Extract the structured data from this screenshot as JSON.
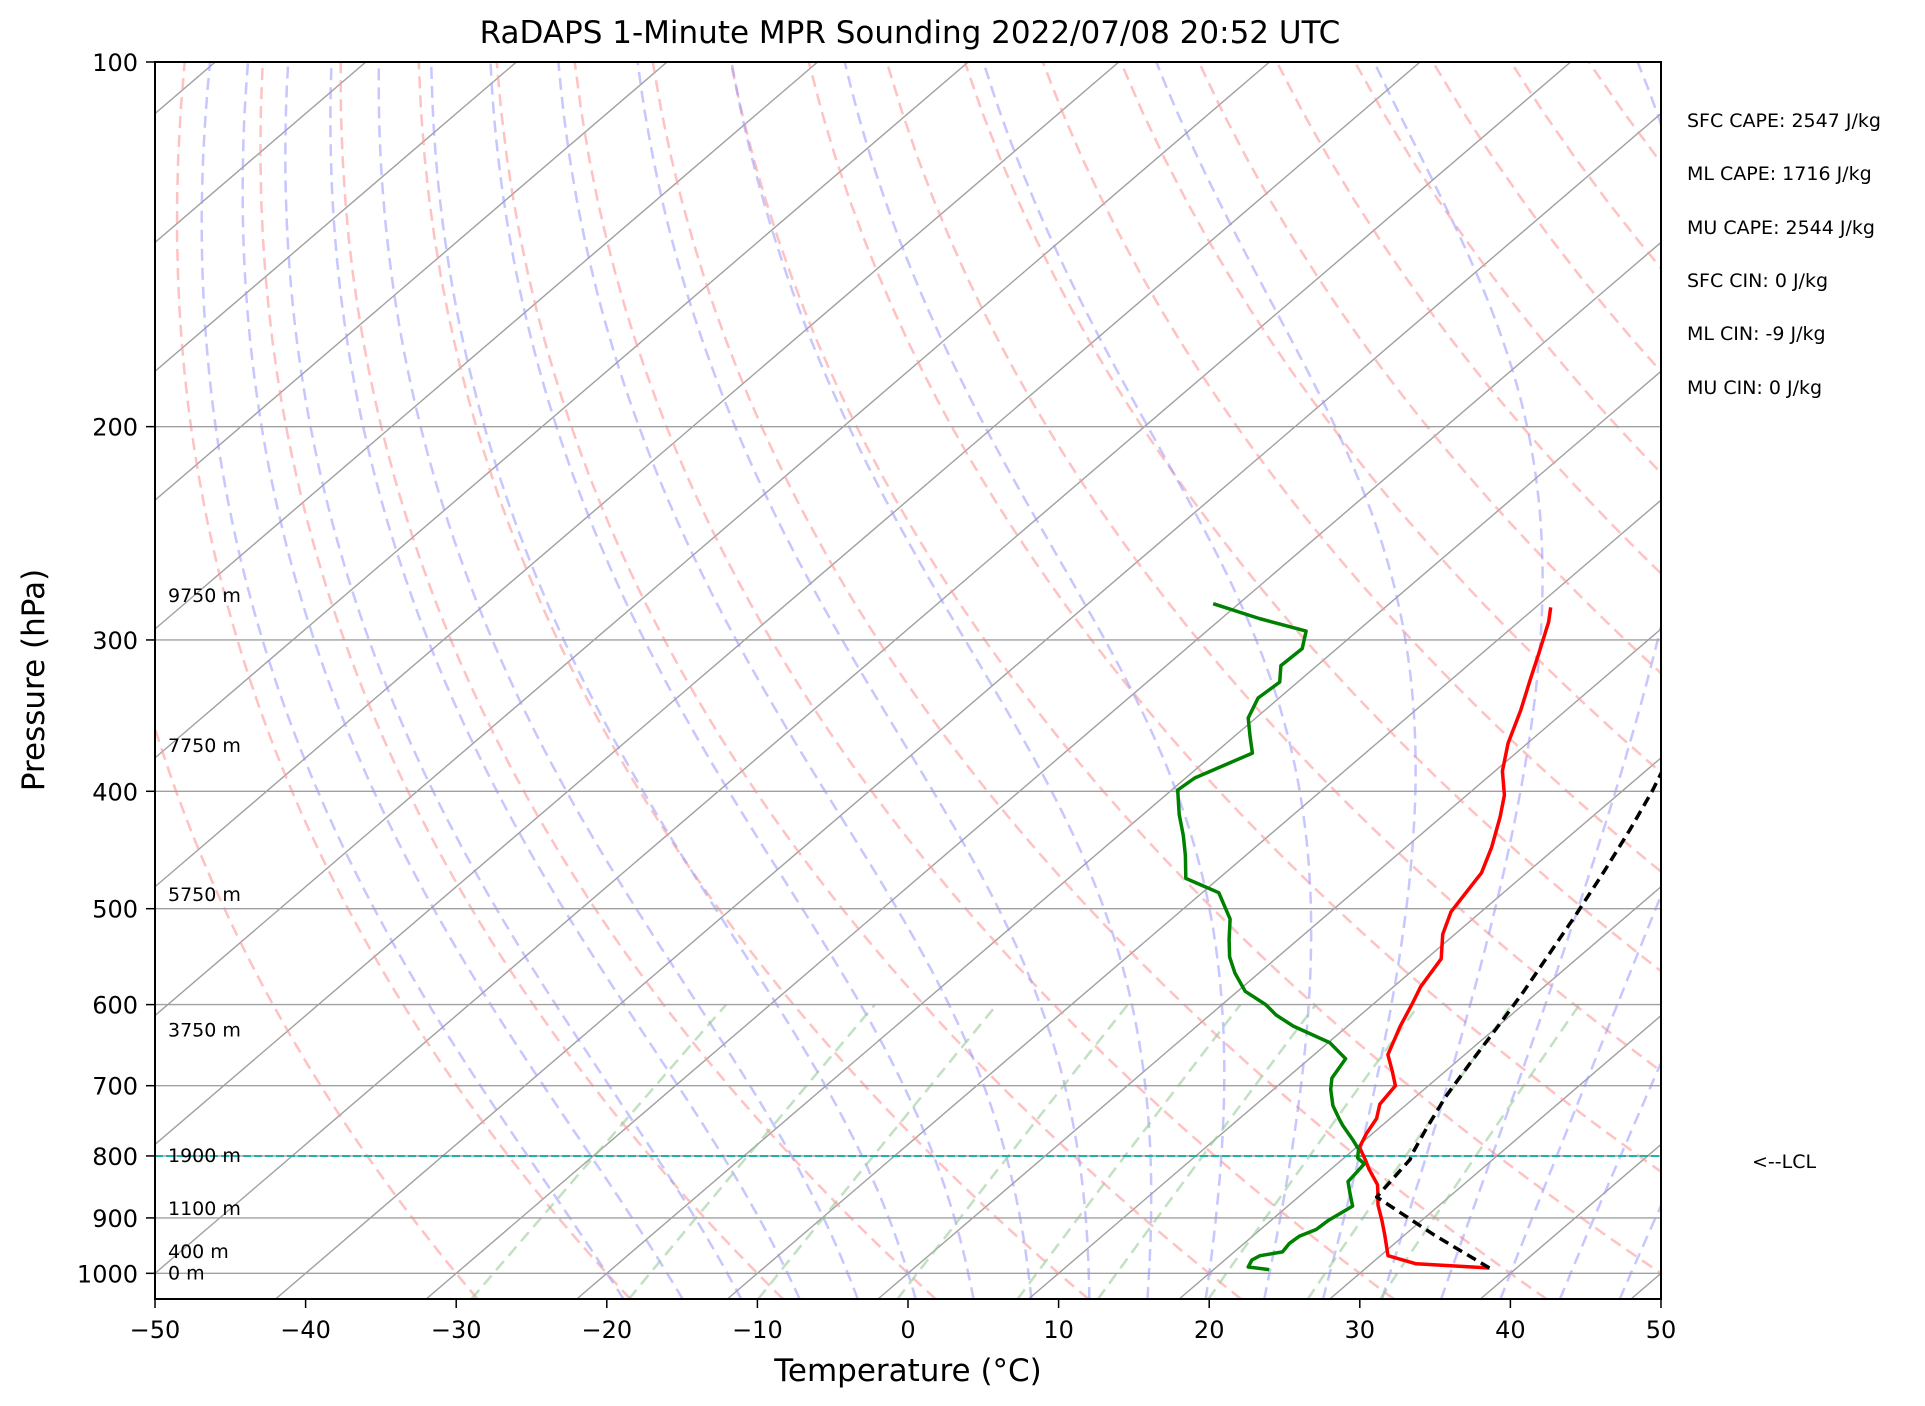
{
  "chart_data": {
    "type": "skew-t",
    "title": "RaDAPS 1-Minute MPR Sounding 2022/07/08 20:52 UTC",
    "xlabel": "Temperature (°C)",
    "ylabel": "Pressure (hPa)",
    "xlim": [
      -50,
      50
    ],
    "ylim": [
      1050,
      100
    ],
    "y_scale": "log",
    "x_ticks": [
      -50,
      -40,
      -30,
      -20,
      -10,
      0,
      10,
      20,
      30,
      40,
      50
    ],
    "x_tick_labels": [
      "−50",
      "−40",
      "−30",
      "−20",
      "−10",
      "0",
      "10",
      "20",
      "30",
      "40",
      "50"
    ],
    "y_ticks": [
      100,
      200,
      300,
      400,
      500,
      600,
      700,
      800,
      900,
      1000
    ],
    "y_tick_labels": [
      "100",
      "200",
      "300",
      "400",
      "500",
      "600",
      "700",
      "800",
      "900",
      "1000"
    ],
    "grid": true,
    "colors": {
      "temperature": "#ff0000",
      "dewpoint": "#008000",
      "parcel": "#000000",
      "lcl_line": "#20b2aa",
      "isotherms": "#a0a0a0",
      "dry_adiabats": "#ff9999",
      "moist_adiabats": "#9999ff",
      "mixing_ratio": "#99cc99"
    },
    "height_labels": [
      {
        "text": "0 m",
        "p": 1000
      },
      {
        "text": "400 m",
        "p": 960
      },
      {
        "text": "1100 m",
        "p": 885
      },
      {
        "text": "1900 m",
        "p": 800
      },
      {
        "text": "3750 m",
        "p": 630
      },
      {
        "text": "5750 m",
        "p": 487
      },
      {
        "text": "7750 m",
        "p": 367
      },
      {
        "text": "9750 m",
        "p": 276
      }
    ],
    "lcl": {
      "p": 800,
      "label": "<--LCL"
    },
    "series": [
      {
        "key": "temperature",
        "points": [
          [
            38.2,
            990
          ],
          [
            33,
            982
          ],
          [
            30.5,
            967
          ],
          [
            28.7,
            930
          ],
          [
            27.4,
            905
          ],
          [
            25.9,
            878
          ],
          [
            24.8,
            855
          ],
          [
            24.3,
            845
          ],
          [
            22.5,
            820
          ],
          [
            21.5,
            805
          ],
          [
            20.2,
            787
          ],
          [
            19.6,
            767
          ],
          [
            19.1,
            745
          ],
          [
            18.2,
            725
          ],
          [
            17.8,
            700
          ],
          [
            16.4,
            680
          ],
          [
            14.9,
            660
          ],
          [
            13.5,
            625
          ],
          [
            12.6,
            600
          ],
          [
            11.8,
            580
          ],
          [
            11,
            550
          ],
          [
            9.2,
            525
          ],
          [
            8,
            503
          ],
          [
            7,
            467
          ],
          [
            5.7,
            445
          ],
          [
            3.9,
            420
          ],
          [
            2.5,
            403
          ],
          [
            0.5,
            385
          ],
          [
            -1.3,
            365
          ],
          [
            -3,
            343
          ],
          [
            -4.8,
            323
          ],
          [
            -6.2,
            308
          ],
          [
            -8,
            290
          ],
          [
            -9,
            282
          ]
        ]
      },
      {
        "key": "dewpoint",
        "points": [
          [
            23.7,
            993
          ],
          [
            22.1,
            988
          ],
          [
            21.8,
            975
          ],
          [
            22,
            967
          ],
          [
            23.2,
            960
          ],
          [
            23,
            945
          ],
          [
            23.1,
            932
          ],
          [
            23.7,
            920
          ],
          [
            23.8,
            905
          ],
          [
            24.3,
            880
          ],
          [
            23.2,
            860
          ],
          [
            22.1,
            840
          ],
          [
            22,
            830
          ],
          [
            21.8,
            812
          ],
          [
            20.9,
            803
          ],
          [
            20.3,
            790
          ],
          [
            19.1,
            775
          ],
          [
            17.4,
            755
          ],
          [
            16.6,
            745
          ],
          [
            15.2,
            727
          ],
          [
            13.8,
            705
          ],
          [
            13,
            690
          ],
          [
            12.4,
            665
          ],
          [
            10.1,
            645
          ],
          [
            6.4,
            625
          ],
          [
            4.4,
            612
          ],
          [
            2.9,
            600
          ],
          [
            0.5,
            585
          ],
          [
            -1.6,
            565
          ],
          [
            -3.2,
            548
          ],
          [
            -4.6,
            530
          ],
          [
            -6.1,
            510
          ],
          [
            -8.9,
            485
          ],
          [
            -12.2,
            472
          ],
          [
            -14,
            452
          ],
          [
            -15.7,
            435
          ],
          [
            -17.6,
            418
          ],
          [
            -19.6,
            399
          ],
          [
            -19.4,
            390
          ],
          [
            -17.5,
            372
          ],
          [
            -19,
            360
          ],
          [
            -20.5,
            348
          ],
          [
            -21.4,
            335
          ],
          [
            -21.2,
            325
          ],
          [
            -22.4,
            315
          ],
          [
            -22.3,
            305
          ],
          [
            -23.4,
            295
          ],
          [
            -27.5,
            288
          ],
          [
            -31.7,
            280
          ]
        ]
      },
      {
        "key": "parcel",
        "dashed": true,
        "points": [
          [
            38.2,
            990
          ],
          [
            32,
            930
          ],
          [
            25.2,
            865
          ],
          [
            24.5,
            805
          ],
          [
            24.3,
            800
          ],
          [
            23.2,
            760
          ],
          [
            22,
            715
          ],
          [
            21,
            670
          ],
          [
            20,
            625
          ],
          [
            19,
            585
          ],
          [
            17.8,
            545
          ],
          [
            16.5,
            505
          ],
          [
            15,
            465
          ],
          [
            13.5,
            430
          ],
          [
            12,
            400
          ],
          [
            10.5,
            375
          ],
          [
            9,
            350
          ],
          [
            7.5,
            327
          ],
          [
            5.8,
            305
          ],
          [
            4,
            288
          ],
          [
            2.9,
            280
          ]
        ]
      }
    ]
  },
  "indices": [
    "SFC CAPE: 2547 J/kg",
    "ML CAPE: 1716 J/kg",
    "MU CAPE: 2544 J/kg",
    "SFC CIN: 0 J/kg",
    "ML CIN: -9 J/kg",
    "MU CIN: 0 J/kg"
  ]
}
